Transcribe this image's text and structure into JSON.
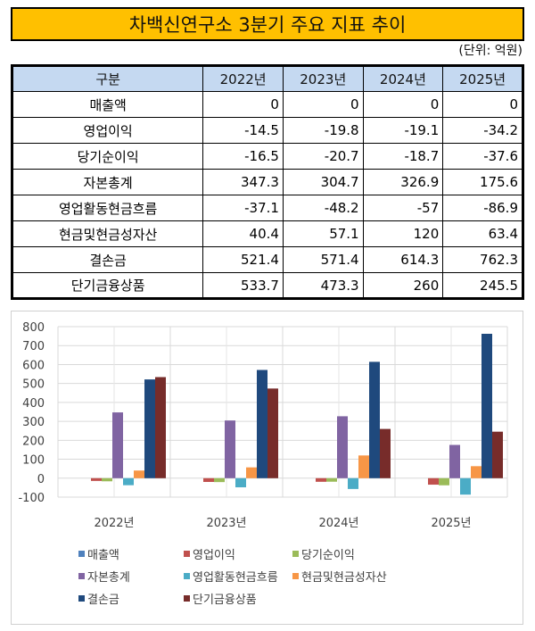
{
  "title": "차백신연구소 3분기 주요 지표 추이",
  "unit": "(단위: 억원)",
  "table": {
    "headers": [
      "구분",
      "2022년",
      "2023년",
      "2024년",
      "2025년"
    ],
    "rows": [
      {
        "label": "매출액",
        "values": [
          "0",
          "0",
          "0",
          "0"
        ]
      },
      {
        "label": "영업이익",
        "values": [
          "-14.5",
          "-19.8",
          "-19.1",
          "-34.2"
        ]
      },
      {
        "label": "당기순이익",
        "values": [
          "-16.5",
          "-20.7",
          "-18.7",
          "-37.6"
        ]
      },
      {
        "label": "자본총계",
        "values": [
          "347.3",
          "304.7",
          "326.9",
          "175.6"
        ]
      },
      {
        "label": "영업활동현금흐름",
        "values": [
          "-37.1",
          "-48.2",
          "-57",
          "-86.9"
        ]
      },
      {
        "label": "현금및현금성자산",
        "values": [
          "40.4",
          "57.1",
          "120",
          "63.4"
        ]
      },
      {
        "label": "결손금",
        "values": [
          "521.4",
          "571.4",
          "614.3",
          "762.3"
        ]
      },
      {
        "label": "단기금융상품",
        "values": [
          "533.7",
          "473.3",
          "260",
          "245.5"
        ]
      }
    ]
  },
  "chart_data": {
    "type": "bar",
    "title": "",
    "xlabel": "",
    "ylabel": "",
    "categories": [
      "2022년",
      "2023년",
      "2024년",
      "2025년"
    ],
    "ylim": [
      -100,
      800
    ],
    "yticks": [
      -100,
      0,
      100,
      200,
      300,
      400,
      500,
      600,
      700,
      800
    ],
    "grid": true,
    "legend_position": "bottom",
    "series": [
      {
        "name": "매출액",
        "color": "#4F81BD",
        "values": [
          0,
          0,
          0,
          0
        ]
      },
      {
        "name": "영업이익",
        "color": "#C0504D",
        "values": [
          -14.5,
          -19.8,
          -19.1,
          -34.2
        ]
      },
      {
        "name": "당기순이익",
        "color": "#9BBB59",
        "values": [
          -16.5,
          -20.7,
          -18.7,
          -37.6
        ]
      },
      {
        "name": "자본총계",
        "color": "#8064A2",
        "values": [
          347.3,
          304.7,
          326.9,
          175.6
        ]
      },
      {
        "name": "영업활동현금흐름",
        "color": "#4BACC6",
        "values": [
          -37.1,
          -48.2,
          -57,
          -86.9
        ]
      },
      {
        "name": "현금및현금성자산",
        "color": "#F79646",
        "values": [
          40.4,
          57.1,
          120,
          63.4
        ]
      },
      {
        "name": "결손금",
        "color": "#1F497D",
        "values": [
          521.4,
          571.4,
          614.3,
          762.3
        ]
      },
      {
        "name": "단기금융상품",
        "color": "#772C2A",
        "values": [
          533.7,
          473.3,
          260,
          245.5
        ]
      }
    ]
  }
}
